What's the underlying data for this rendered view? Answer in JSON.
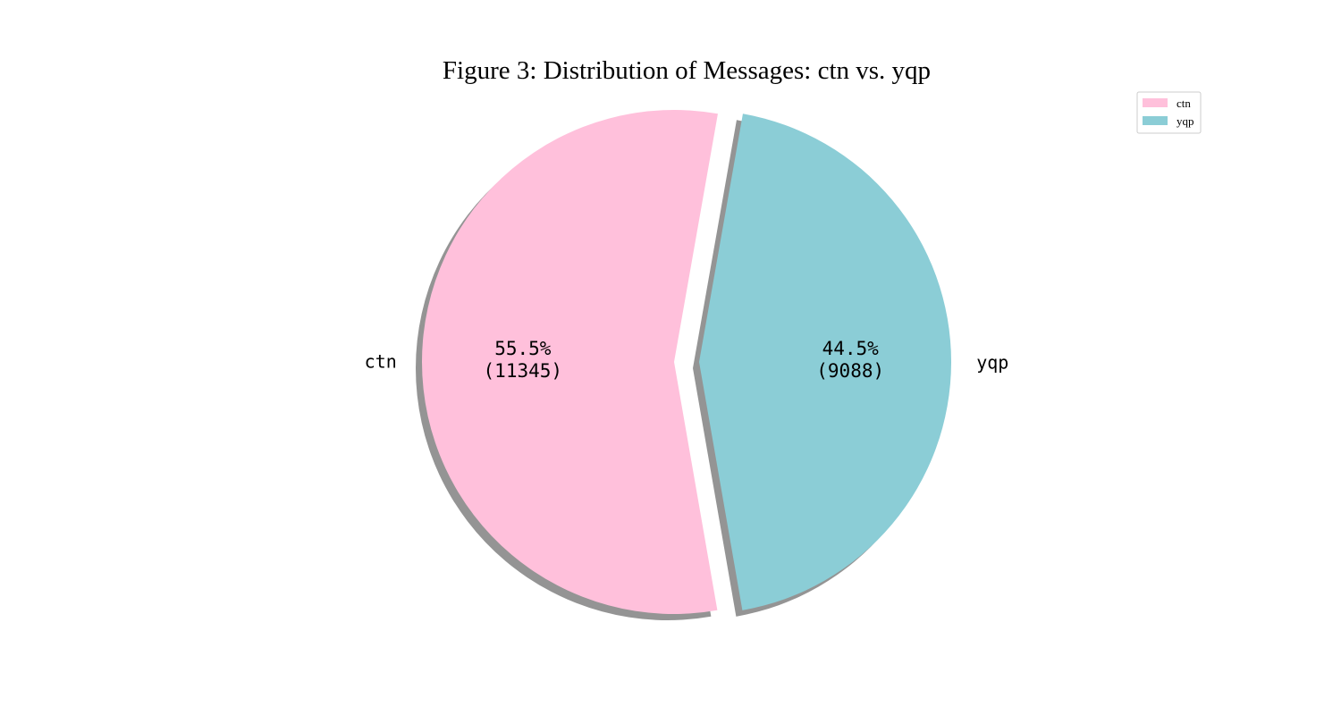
{
  "chart_data": {
    "type": "pie",
    "title": "Figure 3: Distribution of Messages: ctn vs. yqp",
    "categories": [
      "ctn",
      "yqp"
    ],
    "values": [
      11345,
      9088
    ],
    "percent_labels": [
      "55.5%",
      "44.5%"
    ],
    "count_labels": [
      "(11345)",
      "(9088)"
    ],
    "colors": [
      "#FFC0DB",
      "#8BCDD6"
    ],
    "exploded": [
      "ctn",
      "yqp"
    ],
    "shadow": true,
    "start_angle_deg": 80,
    "legend": {
      "placement": "top-right",
      "entries": [
        "ctn",
        "yqp"
      ]
    }
  }
}
